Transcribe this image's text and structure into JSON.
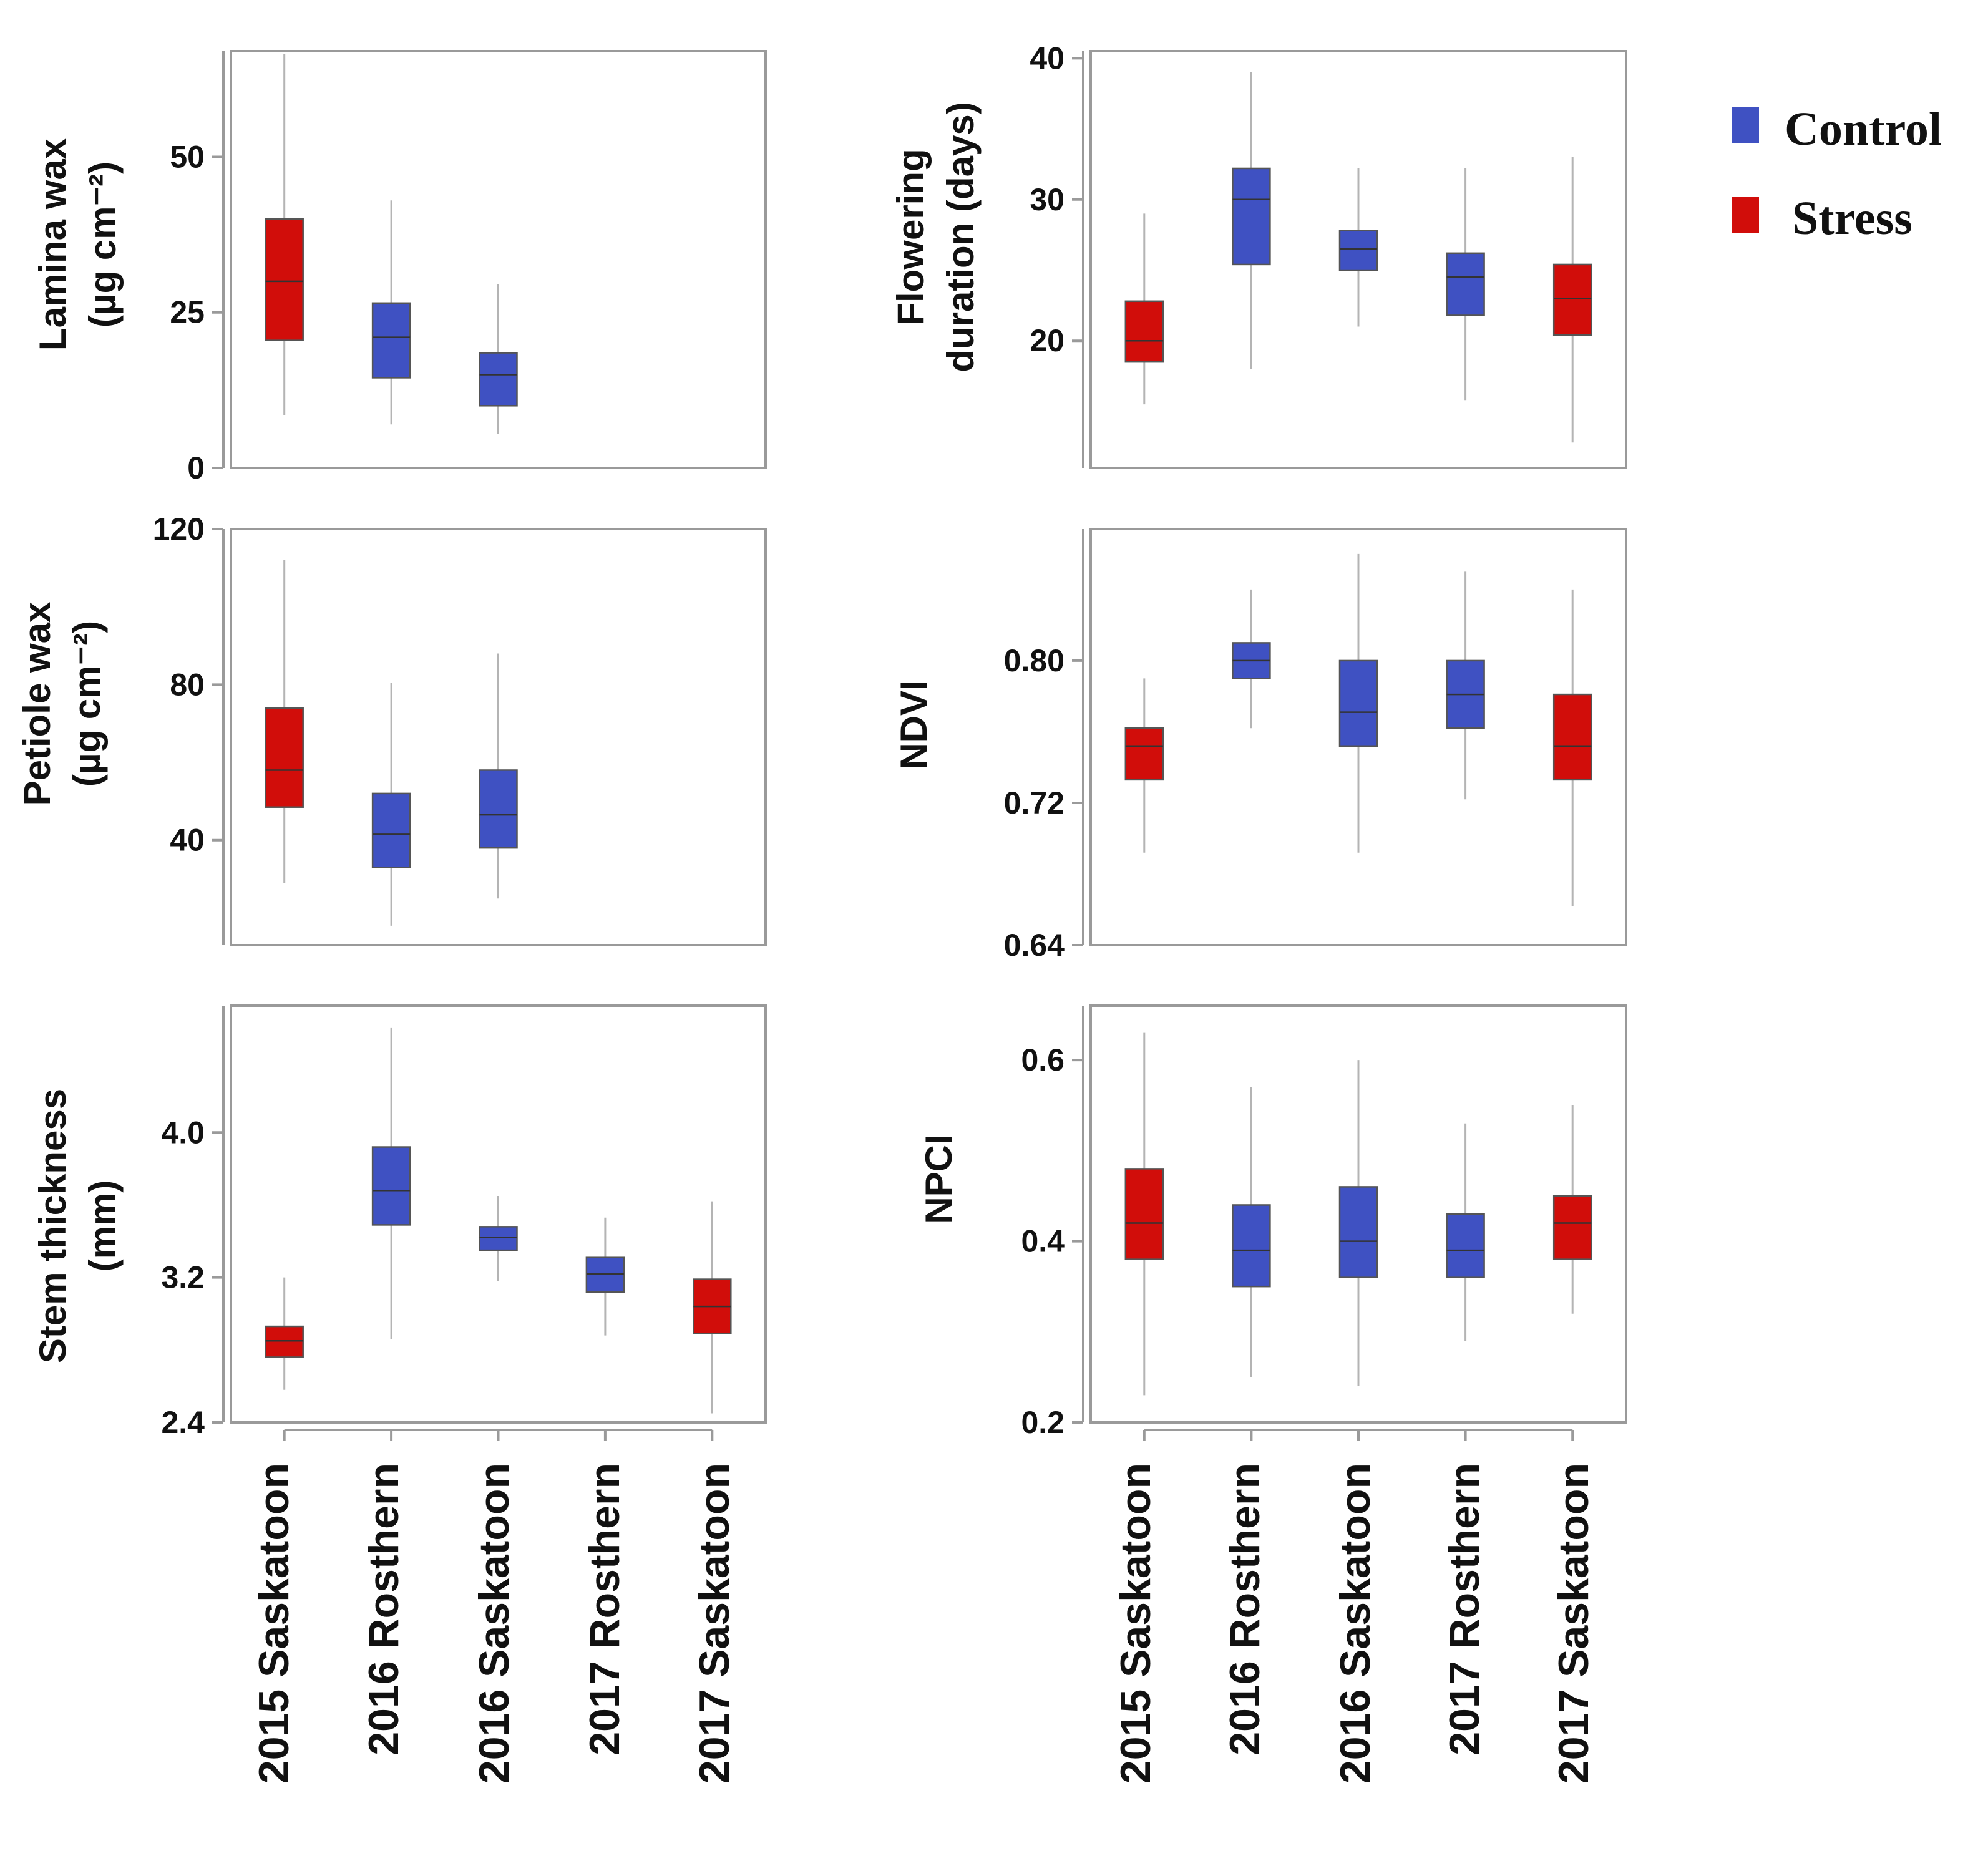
{
  "colors": {
    "control": "#3f51c2",
    "stress": "#d10d0a",
    "frame": "#9a9a9a"
  },
  "legend": [
    {
      "label": "Control",
      "group": "control"
    },
    {
      "label": "Stress",
      "group": "stress"
    }
  ],
  "chart_data": [
    {
      "type": "box",
      "ylabel_lines": [
        "Lamina wax",
        "(µg cm⁻²)"
      ],
      "ylim": [
        0,
        67
      ],
      "yticks": [
        0,
        25,
        50
      ],
      "categories": [
        "2015 Saskatoon",
        "2016 Rosthern",
        "2016 Saskatoon",
        "2017 Rosthern",
        "2017 Saskatoon"
      ],
      "boxes": [
        {
          "category": "2015 Saskatoon",
          "group": "stress",
          "min": 8.5,
          "q1": 20.5,
          "median": 30,
          "q3": 40,
          "max": 66.5
        },
        {
          "category": "2016 Rosthern",
          "group": "control",
          "min": 7,
          "q1": 14.5,
          "median": 21,
          "q3": 26.5,
          "max": 43
        },
        {
          "category": "2016 Saskatoon",
          "group": "control",
          "min": 5.5,
          "q1": 10,
          "median": 15,
          "q3": 18.5,
          "max": 29.5
        }
      ]
    },
    {
      "type": "box",
      "ylabel_lines": [
        "Flowering",
        "duration (days)"
      ],
      "ylim": [
        11,
        40.5
      ],
      "yticks": [
        20,
        30,
        40
      ],
      "categories": [
        "2015 Saskatoon",
        "2016 Rosthern",
        "2016 Saskatoon",
        "2017 Rosthern",
        "2017 Saskatoon"
      ],
      "boxes": [
        {
          "category": "2015 Saskatoon",
          "group": "stress",
          "min": 15.5,
          "q1": 18.5,
          "median": 20,
          "q3": 22.8,
          "max": 29
        },
        {
          "category": "2016 Rosthern",
          "group": "control",
          "min": 18,
          "q1": 25.4,
          "median": 30,
          "q3": 32.2,
          "max": 39
        },
        {
          "category": "2016 Saskatoon",
          "group": "control",
          "min": 21,
          "q1": 25,
          "median": 26.5,
          "q3": 27.8,
          "max": 32.2
        },
        {
          "category": "2017 Rosthern",
          "group": "control",
          "min": 15.8,
          "q1": 21.8,
          "median": 24.5,
          "q3": 26.2,
          "max": 32.2
        },
        {
          "category": "2017 Saskatoon",
          "group": "stress",
          "min": 12.8,
          "q1": 20.4,
          "median": 23,
          "q3": 25.4,
          "max": 33
        }
      ]
    },
    {
      "type": "box",
      "ylabel_lines": [
        "Petiole wax",
        "(µg cm⁻²)"
      ],
      "ylim": [
        13,
        120
      ],
      "yticks": [
        40,
        80,
        120
      ],
      "categories": [
        "2015 Saskatoon",
        "2016 Rosthern",
        "2016 Saskatoon",
        "2017 Rosthern",
        "2017 Saskatoon"
      ],
      "boxes": [
        {
          "category": "2015 Saskatoon",
          "group": "stress",
          "min": 29,
          "q1": 48.5,
          "median": 58,
          "q3": 74,
          "max": 112
        },
        {
          "category": "2016 Rosthern",
          "group": "control",
          "min": 18,
          "q1": 33,
          "median": 41.5,
          "q3": 52,
          "max": 80.5
        },
        {
          "category": "2016 Saskatoon",
          "group": "control",
          "min": 25,
          "q1": 38,
          "median": 46.5,
          "q3": 58,
          "max": 88
        }
      ]
    },
    {
      "type": "box",
      "ylabel_lines": [
        "NDVI"
      ],
      "ylim": [
        0.64,
        0.874
      ],
      "yticks": [
        0.64,
        0.72,
        0.8
      ],
      "ytick_labels": [
        "0.64",
        "0.72",
        "0.80"
      ],
      "categories": [
        "2015 Saskatoon",
        "2016 Rosthern",
        "2016 Saskatoon",
        "2017 Rosthern",
        "2017 Saskatoon"
      ],
      "boxes": [
        {
          "category": "2015 Saskatoon",
          "group": "stress",
          "min": 0.692,
          "q1": 0.733,
          "median": 0.752,
          "q3": 0.762,
          "max": 0.79
        },
        {
          "category": "2016 Rosthern",
          "group": "control",
          "min": 0.762,
          "q1": 0.79,
          "median": 0.8,
          "q3": 0.81,
          "max": 0.84
        },
        {
          "category": "2016 Saskatoon",
          "group": "control",
          "min": 0.692,
          "q1": 0.752,
          "median": 0.771,
          "q3": 0.8,
          "max": 0.86
        },
        {
          "category": "2017 Rosthern",
          "group": "control",
          "min": 0.722,
          "q1": 0.762,
          "median": 0.781,
          "q3": 0.8,
          "max": 0.85
        },
        {
          "category": "2017 Saskatoon",
          "group": "stress",
          "min": 0.662,
          "q1": 0.733,
          "median": 0.752,
          "q3": 0.781,
          "max": 0.84
        }
      ]
    },
    {
      "type": "box",
      "ylabel_lines": [
        "Stem thickness",
        "(mm)"
      ],
      "ylim": [
        2.4,
        4.7
      ],
      "yticks": [
        2.4,
        3.2,
        4.0
      ],
      "ytick_labels": [
        "2.4",
        "3.2",
        "4.0"
      ],
      "categories": [
        "2015 Saskatoon",
        "2016 Rosthern",
        "2016 Saskatoon",
        "2017 Rosthern",
        "2017 Saskatoon"
      ],
      "boxes": [
        {
          "category": "2015 Saskatoon",
          "group": "stress",
          "min": 2.58,
          "q1": 2.76,
          "median": 2.85,
          "q3": 2.93,
          "max": 3.2
        },
        {
          "category": "2016 Rosthern",
          "group": "control",
          "min": 2.86,
          "q1": 3.49,
          "median": 3.68,
          "q3": 3.92,
          "max": 4.58
        },
        {
          "category": "2016 Saskatoon",
          "group": "control",
          "min": 3.18,
          "q1": 3.35,
          "median": 3.42,
          "q3": 3.48,
          "max": 3.65
        },
        {
          "category": "2017 Rosthern",
          "group": "control",
          "min": 2.88,
          "q1": 3.12,
          "median": 3.22,
          "q3": 3.31,
          "max": 3.53
        },
        {
          "category": "2017 Saskatoon",
          "group": "stress",
          "min": 2.45,
          "q1": 2.89,
          "median": 3.04,
          "q3": 3.19,
          "max": 3.62
        }
      ]
    },
    {
      "type": "box",
      "ylabel_lines": [
        "NPCI"
      ],
      "ylim": [
        0.2,
        0.66
      ],
      "yticks": [
        0.2,
        0.4,
        0.6
      ],
      "ytick_labels": [
        "0.2",
        "0.4",
        "0.6"
      ],
      "categories": [
        "2015 Saskatoon",
        "2016 Rosthern",
        "2016 Saskatoon",
        "2017 Rosthern",
        "2017 Saskatoon"
      ],
      "boxes": [
        {
          "category": "2015 Saskatoon",
          "group": "stress",
          "min": 0.23,
          "q1": 0.38,
          "median": 0.42,
          "q3": 0.48,
          "max": 0.63
        },
        {
          "category": "2016 Rosthern",
          "group": "control",
          "min": 0.25,
          "q1": 0.35,
          "median": 0.39,
          "q3": 0.44,
          "max": 0.57
        },
        {
          "category": "2016 Saskatoon",
          "group": "control",
          "min": 0.24,
          "q1": 0.36,
          "median": 0.4,
          "q3": 0.46,
          "max": 0.6
        },
        {
          "category": "2017 Rosthern",
          "group": "control",
          "min": 0.29,
          "q1": 0.36,
          "median": 0.39,
          "q3": 0.43,
          "max": 0.53
        },
        {
          "category": "2017 Saskatoon",
          "group": "stress",
          "min": 0.32,
          "q1": 0.38,
          "median": 0.42,
          "q3": 0.45,
          "max": 0.55
        }
      ]
    }
  ]
}
